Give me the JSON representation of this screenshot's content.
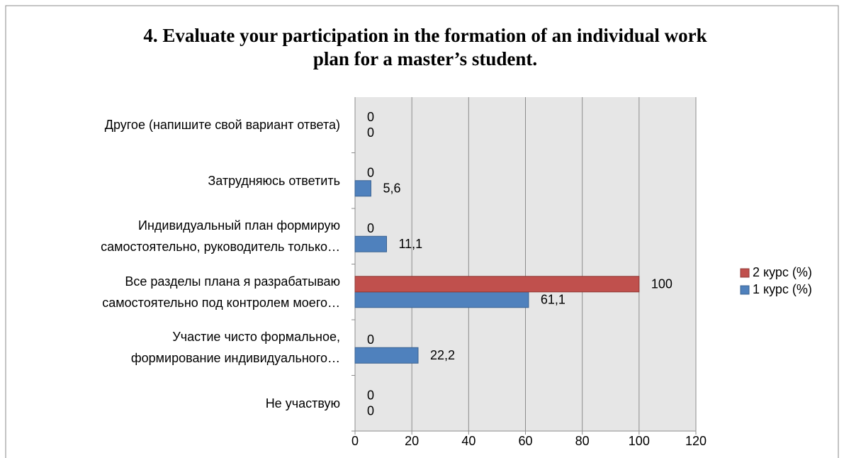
{
  "chart_data": {
    "type": "bar",
    "orientation": "horizontal",
    "title": "4. Evaluate your participation in the formation of an individual work plan for a master’s student.",
    "categories": [
      "Не участвую",
      "Участие чисто формальное, формирование индивидуального…",
      "Все разделы плана я разрабатываю самостоятельно под контролем моего…",
      "Индивидуальный план формирую самостоятельно, руководитель только…",
      "Затрудняюсь ответить",
      "Другое (напишите свой вариант ответа)"
    ],
    "series": [
      {
        "name": "1 курс (%)",
        "color": "#4f81bd",
        "values": [
          0,
          22.2,
          61.1,
          11.1,
          5.6,
          0
        ],
        "value_labels": [
          "0",
          "22,2",
          "61,1",
          "11,1",
          "5,6",
          "0"
        ]
      },
      {
        "name": "2 курс (%)",
        "color": "#c0504d",
        "values": [
          0,
          0,
          100,
          0,
          0,
          0
        ]
      }
    ],
    "xlim": [
      0,
      120
    ],
    "xticks": [
      0,
      20,
      40,
      60,
      80,
      100,
      120
    ],
    "grid": true,
    "legend": "right"
  }
}
